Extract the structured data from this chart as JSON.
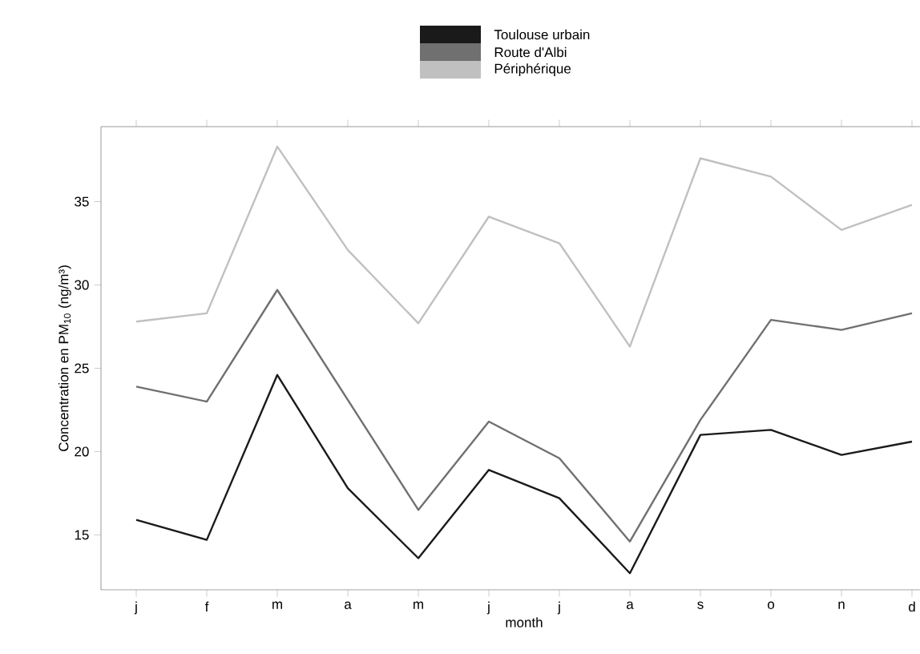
{
  "chart_data": {
    "type": "line",
    "xlabel": "month",
    "ylabel": "Concentration en  PM$_{10}$ (ng/m³)",
    "categories": [
      "j",
      "f",
      "m",
      "a",
      "m",
      "j",
      "j",
      "a",
      "s",
      "o",
      "n",
      "d"
    ],
    "series": [
      {
        "name": "Toulouse urbain",
        "color": "#1a1a1a",
        "values": [
          15.9,
          14.7,
          24.6,
          17.8,
          13.6,
          18.9,
          17.2,
          12.7,
          21.0,
          21.3,
          19.8,
          20.6
        ]
      },
      {
        "name": "Route d'Albi",
        "color": "#707070",
        "values": [
          23.9,
          23.0,
          29.7,
          23.1,
          16.5,
          21.8,
          19.6,
          14.6,
          21.9,
          27.9,
          27.3,
          28.3
        ]
      },
      {
        "name": "Périphérique",
        "color": "#c0c0c0",
        "values": [
          27.8,
          28.3,
          38.3,
          32.1,
          27.7,
          34.1,
          32.5,
          26.3,
          37.6,
          36.5,
          33.3,
          34.8
        ]
      }
    ],
    "ylim": [
      11.7,
      39.5
    ],
    "yticks": [
      15,
      20,
      25,
      30,
      35
    ],
    "grid": false,
    "legend": "top",
    "line_style": "solid",
    "marker": "none"
  }
}
